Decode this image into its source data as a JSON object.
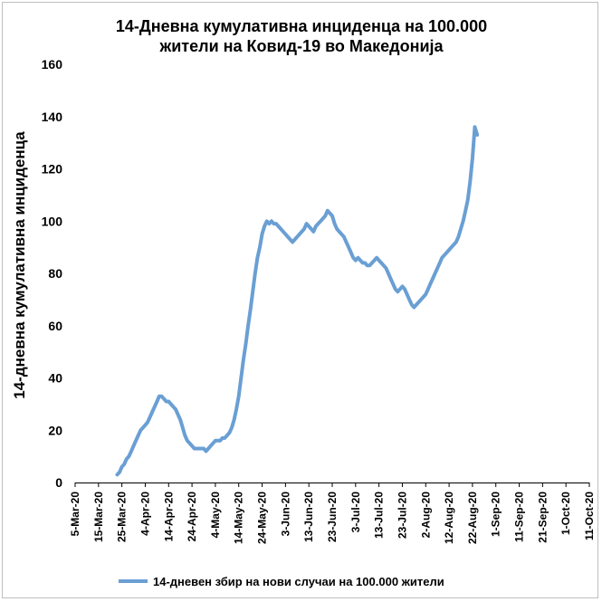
{
  "chart_data": {
    "type": "line",
    "title_line1": "14-Дневна кумулативна инциденца на 100.000",
    "title_line2": "жители на Ковид-19 во Македонија",
    "xlabel": "",
    "ylabel": "14-дневна кумулативна инциденца",
    "ylim": [
      0,
      160
    ],
    "yticks": [
      "0",
      "20",
      "40",
      "60",
      "80",
      "100",
      "120",
      "140",
      "160"
    ],
    "x_categories": [
      "5-Mar-20",
      "15-Mar-20",
      "25-Mar-20",
      "4-Apr-20",
      "14-Apr-20",
      "24-Apr-20",
      "4-May-20",
      "14-May-20",
      "24-May-20",
      "3-Jun-20",
      "13-Jun-20",
      "23-Jun-20",
      "3-Jul-20",
      "13-Jul-20",
      "23-Jul-20",
      "2-Aug-20",
      "12-Aug-20",
      "22-Aug-20",
      "1-Sep-20",
      "11-Sep-20",
      "21-Sep-20",
      "1-Oct-20",
      "11-Oct-20"
    ],
    "grid": false,
    "legend_position": "bottom",
    "series": [
      {
        "name": "14-дневен збир на нови случаи на 100.000 жители",
        "color": "#6a9fd4",
        "points": [
          [
            18,
            3
          ],
          [
            19,
            4
          ],
          [
            20,
            6
          ],
          [
            21,
            7
          ],
          [
            22,
            9
          ],
          [
            23,
            10
          ],
          [
            24,
            12
          ],
          [
            25,
            14
          ],
          [
            26,
            16
          ],
          [
            27,
            18
          ],
          [
            28,
            20
          ],
          [
            29,
            21
          ],
          [
            30,
            22
          ],
          [
            31,
            23
          ],
          [
            32,
            25
          ],
          [
            33,
            27
          ],
          [
            34,
            29
          ],
          [
            35,
            31
          ],
          [
            36,
            33
          ],
          [
            37,
            33
          ],
          [
            38,
            32
          ],
          [
            39,
            31
          ],
          [
            40,
            31
          ],
          [
            41,
            30
          ],
          [
            42,
            29
          ],
          [
            43,
            28
          ],
          [
            44,
            26
          ],
          [
            45,
            24
          ],
          [
            46,
            21
          ],
          [
            47,
            18
          ],
          [
            48,
            16
          ],
          [
            49,
            15
          ],
          [
            50,
            14
          ],
          [
            51,
            13
          ],
          [
            52,
            13
          ],
          [
            53,
            13
          ],
          [
            54,
            13
          ],
          [
            55,
            13
          ],
          [
            56,
            12
          ],
          [
            57,
            13
          ],
          [
            58,
            14
          ],
          [
            59,
            15
          ],
          [
            60,
            16
          ],
          [
            61,
            16
          ],
          [
            62,
            16
          ],
          [
            63,
            17
          ],
          [
            64,
            17
          ],
          [
            65,
            18
          ],
          [
            66,
            19
          ],
          [
            67,
            21
          ],
          [
            68,
            24
          ],
          [
            69,
            28
          ],
          [
            70,
            33
          ],
          [
            71,
            40
          ],
          [
            72,
            47
          ],
          [
            73,
            53
          ],
          [
            74,
            60
          ],
          [
            75,
            66
          ],
          [
            76,
            73
          ],
          [
            77,
            80
          ],
          [
            78,
            86
          ],
          [
            79,
            90
          ],
          [
            80,
            95
          ],
          [
            81,
            98
          ],
          [
            82,
            100
          ],
          [
            83,
            99
          ],
          [
            84,
            100
          ],
          [
            85,
            99
          ],
          [
            86,
            99
          ],
          [
            87,
            98
          ],
          [
            88,
            97
          ],
          [
            89,
            96
          ],
          [
            90,
            95
          ],
          [
            91,
            94
          ],
          [
            92,
            93
          ],
          [
            93,
            92
          ],
          [
            94,
            93
          ],
          [
            95,
            94
          ],
          [
            96,
            95
          ],
          [
            97,
            96
          ],
          [
            98,
            97
          ],
          [
            99,
            99
          ],
          [
            100,
            98
          ],
          [
            101,
            97
          ],
          [
            102,
            96
          ],
          [
            103,
            98
          ],
          [
            104,
            99
          ],
          [
            105,
            100
          ],
          [
            106,
            101
          ],
          [
            107,
            102
          ],
          [
            108,
            104
          ],
          [
            109,
            103
          ],
          [
            110,
            102
          ],
          [
            111,
            99
          ],
          [
            112,
            97
          ],
          [
            113,
            96
          ],
          [
            114,
            95
          ],
          [
            115,
            94
          ],
          [
            116,
            92
          ],
          [
            117,
            90
          ],
          [
            118,
            88
          ],
          [
            119,
            86
          ],
          [
            120,
            85
          ],
          [
            121,
            86
          ],
          [
            122,
            85
          ],
          [
            123,
            84
          ],
          [
            124,
            84
          ],
          [
            125,
            83
          ],
          [
            126,
            83
          ],
          [
            127,
            84
          ],
          [
            128,
            85
          ],
          [
            129,
            86
          ],
          [
            130,
            85
          ],
          [
            131,
            84
          ],
          [
            132,
            83
          ],
          [
            133,
            82
          ],
          [
            134,
            80
          ],
          [
            135,
            78
          ],
          [
            136,
            76
          ],
          [
            137,
            74
          ],
          [
            138,
            73
          ],
          [
            139,
            74
          ],
          [
            140,
            75
          ],
          [
            141,
            74
          ],
          [
            142,
            72
          ],
          [
            143,
            70
          ],
          [
            144,
            68
          ],
          [
            145,
            67
          ],
          [
            146,
            68
          ],
          [
            147,
            69
          ],
          [
            148,
            70
          ],
          [
            149,
            71
          ],
          [
            150,
            72
          ],
          [
            151,
            74
          ],
          [
            152,
            76
          ],
          [
            153,
            78
          ],
          [
            154,
            80
          ],
          [
            155,
            82
          ],
          [
            156,
            84
          ],
          [
            157,
            86
          ],
          [
            158,
            87
          ],
          [
            159,
            88
          ],
          [
            160,
            89
          ],
          [
            161,
            90
          ],
          [
            162,
            91
          ],
          [
            163,
            92
          ],
          [
            164,
            94
          ],
          [
            165,
            97
          ],
          [
            166,
            100
          ],
          [
            167,
            104
          ],
          [
            168,
            108
          ],
          [
            169,
            115
          ],
          [
            170,
            124
          ],
          [
            171,
            136
          ],
          [
            172,
            133
          ]
        ]
      }
    ]
  }
}
